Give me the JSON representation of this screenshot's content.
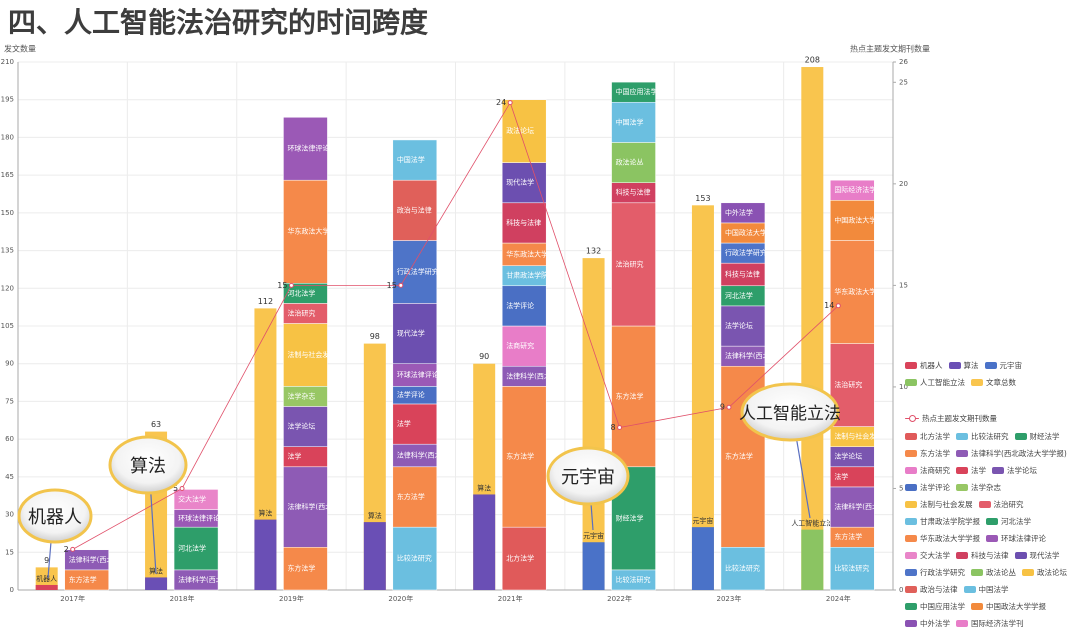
{
  "chart_data": {
    "type": "bar",
    "title": "四、人工智能法治研究的时间跨度",
    "y_label": "发文数量",
    "y2_label": "热点主题发文期刊数量",
    "categories": [
      "2017年",
      "2018年",
      "2019年",
      "2020年",
      "2021年",
      "2022年",
      "2023年",
      "2024年"
    ],
    "ylim": [
      0,
      210
    ],
    "yticks": [
      0,
      15,
      30,
      45,
      60,
      75,
      90,
      105,
      120,
      135,
      150,
      165,
      180,
      195,
      210
    ],
    "y2lim": [
      0,
      26
    ],
    "y2ticks": [
      0,
      5,
      10,
      15,
      20,
      25,
      26
    ],
    "grid": true,
    "series": [
      {
        "name": "机器人",
        "color": "#d9435a",
        "values": [
          2,
          null,
          null,
          null,
          null,
          null,
          null,
          null
        ]
      },
      {
        "name": "算法",
        "color": "#6a4fb5",
        "values": [
          null,
          5,
          28,
          27,
          38,
          null,
          null,
          null
        ]
      },
      {
        "name": "元宇宙",
        "color": "#4a72c8",
        "values": [
          null,
          null,
          null,
          null,
          null,
          19,
          25,
          null
        ]
      },
      {
        "name": "人工智能立法",
        "color": "#8bc462",
        "values": [
          null,
          null,
          null,
          null,
          null,
          null,
          null,
          24
        ]
      },
      {
        "name": "文章总数",
        "color": "#f9c54e",
        "values": [
          9,
          63,
          112,
          98,
          90,
          132,
          153,
          208
        ]
      },
      {
        "name": "热点主题发文期刊数量",
        "color": "#e0506a",
        "type": "line",
        "axis": "y2",
        "values": [
          2,
          5,
          15,
          15,
          24,
          8,
          9,
          14
        ]
      }
    ],
    "journals": [
      {
        "name": "北方法学",
        "color": "#e05a5a",
        "values": [
          null,
          null,
          null,
          null,
          25,
          null,
          null,
          null
        ]
      },
      {
        "name": "比较法研究",
        "color": "#6bbfe0",
        "values": [
          null,
          null,
          null,
          25,
          null,
          8,
          17,
          17
        ]
      },
      {
        "name": "财经法学",
        "color": "#2e9e6a",
        "values": [
          null,
          null,
          null,
          null,
          null,
          41,
          null,
          null
        ]
      },
      {
        "name": "东方法学",
        "color": "#f5894a",
        "values": [
          8,
          null,
          17,
          24,
          56,
          56,
          72,
          8
        ]
      },
      {
        "name": "法律科学(西北政法大学学报)",
        "color": "#8e5bb5",
        "values": [
          8,
          8,
          32,
          9,
          8,
          null,
          8,
          16
        ]
      },
      {
        "name": "法商研究",
        "color": "#e87dc8",
        "values": [
          null,
          null,
          null,
          null,
          16,
          null,
          null,
          null
        ]
      },
      {
        "name": "法学",
        "color": "#d9435a",
        "values": [
          null,
          null,
          8,
          16,
          null,
          null,
          null,
          8
        ]
      },
      {
        "name": "法学论坛",
        "color": "#7a55b0",
        "values": [
          null,
          null,
          16,
          null,
          null,
          null,
          16,
          8
        ]
      },
      {
        "name": "法学评论",
        "color": "#4a6fc4",
        "values": [
          null,
          null,
          null,
          7,
          16,
          null,
          null,
          null
        ]
      },
      {
        "name": "法学杂志",
        "color": "#98c765",
        "values": [
          null,
          null,
          8,
          null,
          null,
          null,
          null,
          null
        ]
      },
      {
        "name": "法制与社会发展",
        "color": "#f7c244",
        "values": [
          null,
          null,
          25,
          null,
          null,
          null,
          null,
          8
        ]
      },
      {
        "name": "法治研究",
        "color": "#e35d6a",
        "values": [
          null,
          null,
          8,
          null,
          null,
          49,
          null,
          33
        ]
      },
      {
        "name": "甘肃政法学院学报",
        "color": "#6bbfe0",
        "values": [
          null,
          null,
          null,
          null,
          8,
          null,
          null,
          null
        ]
      },
      {
        "name": "河北法学",
        "color": "#2e9e6a",
        "values": [
          null,
          17,
          8,
          null,
          null,
          null,
          8,
          null
        ]
      },
      {
        "name": "华东政法大学学报",
        "color": "#f5894a",
        "values": [
          null,
          null,
          41,
          null,
          9,
          null,
          null,
          41
        ]
      },
      {
        "name": "环球法律评论",
        "color": "#9b59b6",
        "values": [
          null,
          7,
          25,
          9,
          null,
          null,
          null,
          null
        ]
      },
      {
        "name": "交大法学",
        "color": "#e985c9",
        "values": [
          null,
          8,
          null,
          null,
          null,
          null,
          null,
          null
        ]
      },
      {
        "name": "科技与法律",
        "color": "#d04060",
        "values": [
          null,
          null,
          null,
          null,
          16,
          8,
          9,
          null
        ]
      },
      {
        "name": "现代法学",
        "color": "#6c4fb0",
        "values": [
          null,
          null,
          null,
          24,
          16,
          null,
          null,
          null
        ]
      },
      {
        "name": "行政法学研究",
        "color": "#4e74c8",
        "values": [
          null,
          null,
          null,
          25,
          null,
          null,
          8,
          null
        ]
      },
      {
        "name": "政法论丛",
        "color": "#8bc462",
        "values": [
          null,
          null,
          null,
          null,
          null,
          16,
          null,
          null
        ]
      },
      {
        "name": "政法论坛",
        "color": "#f7c244",
        "values": [
          null,
          null,
          null,
          null,
          25,
          null,
          null,
          null
        ]
      },
      {
        "name": "政治与法律",
        "color": "#e0605a",
        "values": [
          null,
          null,
          null,
          24,
          null,
          null,
          null,
          null
        ]
      },
      {
        "name": "中国法学",
        "color": "#6bbfe0",
        "values": [
          null,
          null,
          null,
          16,
          null,
          16,
          null,
          null
        ]
      },
      {
        "name": "中国应用法学",
        "color": "#2e9e6a",
        "values": [
          null,
          null,
          null,
          null,
          null,
          8,
          null,
          null
        ]
      },
      {
        "name": "中国政法大学学报",
        "color": "#f28a3c",
        "values": [
          null,
          null,
          null,
          null,
          null,
          null,
          8,
          16
        ]
      },
      {
        "name": "中外法学",
        "color": "#8a52b3",
        "values": [
          null,
          null,
          null,
          null,
          null,
          null,
          8,
          null
        ]
      },
      {
        "name": "国际经济法学刊",
        "color": "#e87dc8",
        "values": [
          null,
          null,
          null,
          null,
          null,
          null,
          null,
          8
        ]
      }
    ],
    "annotations": [
      "机器人",
      "算法",
      "元宇宙",
      "人工智能立法"
    ]
  }
}
